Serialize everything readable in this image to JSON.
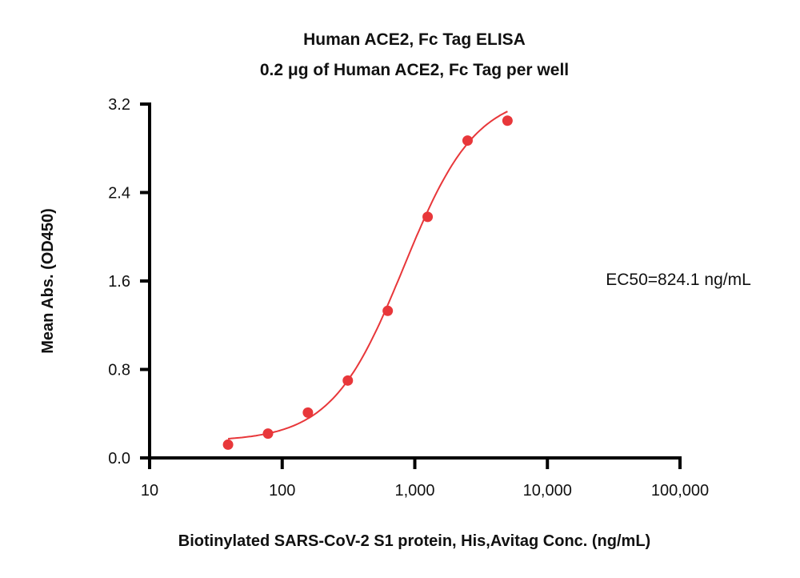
{
  "chart_data": {
    "type": "scatter",
    "title": "Human ACE2, Fc Tag ELISA",
    "subtitle": "0.2 μg of Human ACE2, Fc Tag per well",
    "xlabel": "Biotinylated SARS-CoV-2 S1 protein, His,Avitag Conc. (ng/mL)",
    "ylabel": "Mean Abs. (OD450)",
    "xscale": "log",
    "xlim": [
      10,
      100000
    ],
    "ylim": [
      0,
      3.2
    ],
    "xticks": [
      10,
      100,
      1000,
      10000,
      100000
    ],
    "xtick_labels": [
      "10",
      "100",
      "1,000",
      "10,000",
      "100,000"
    ],
    "yticks": [
      0,
      0.8,
      1.6,
      2.4,
      3.2
    ],
    "ytick_labels": [
      "0.0",
      "0.8",
      "1.6",
      "2.4",
      "3.2"
    ],
    "annotation": "EC50=824.1 ng/mL",
    "grid": false,
    "color": "#e8373a",
    "series": [
      {
        "name": "Human ACE2, Fc Tag",
        "x": [
          39.06,
          78.13,
          156.25,
          312.5,
          625,
          1250,
          2500,
          5000
        ],
        "y": [
          0.12,
          0.22,
          0.41,
          0.7,
          1.33,
          2.18,
          2.87,
          3.05
        ]
      }
    ],
    "fit": {
      "model": "4PL",
      "bottom": 0.15,
      "top": 3.3,
      "ec50": 824.1,
      "hill": 1.6
    }
  }
}
